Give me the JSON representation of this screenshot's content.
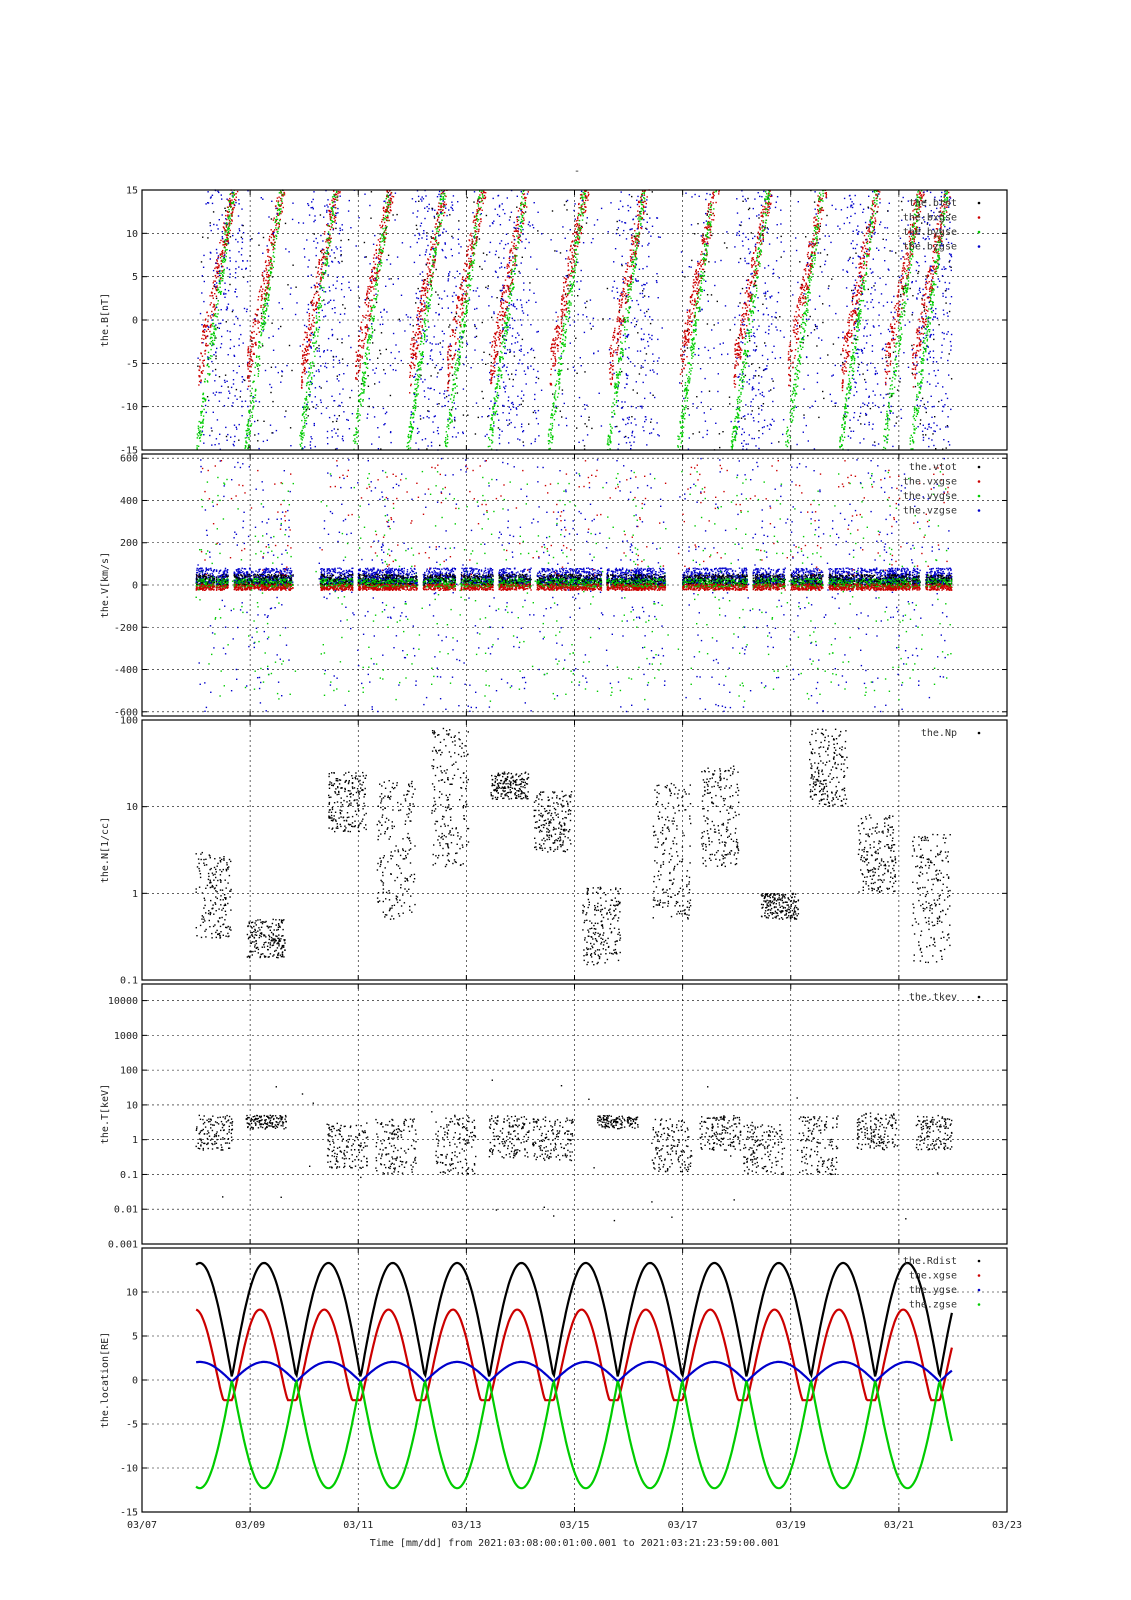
{
  "figure": {
    "top_mark": "-",
    "xlabel": "Time [mm/dd]  from 2021:03:08:00:01:00.001  to  2021:03:21:23:59:00.001",
    "x_range_days": [
      7,
      23
    ],
    "x_tick_days": [
      7,
      9,
      11,
      13,
      15,
      17,
      19,
      21,
      23
    ],
    "x_tick_labels": [
      "03/07",
      "03/09",
      "03/11",
      "03/13",
      "03/15",
      "03/17",
      "03/19",
      "03/21",
      "03/23"
    ]
  },
  "colors": {
    "black": "#000000",
    "red": "#cc0000",
    "green": "#00cc00",
    "blue": "#0000cc",
    "grid": "#000000"
  },
  "chart_data": [
    {
      "type": "scatter",
      "id": "B",
      "ylabel": "the.B[nT]",
      "ylim": [
        -15,
        15
      ],
      "yticks": [
        15,
        10,
        5,
        0,
        -5,
        -10,
        -15
      ],
      "ytick_labels": [
        "15",
        "10",
        "5",
        "0",
        "-5",
        "-10",
        "-15"
      ],
      "grid": true,
      "legend_position": "top-right",
      "series": [
        {
          "name": "the.btot",
          "color": "black"
        },
        {
          "name": "the.bxgse",
          "color": "red"
        },
        {
          "name": "the.bygse",
          "color": "green"
        },
        {
          "name": "the.bzgse",
          "color": "blue"
        }
      ]
    },
    {
      "type": "scatter",
      "id": "V",
      "ylabel": "the.V[km/s]",
      "ylim": [
        -620,
        620
      ],
      "yticks": [
        600,
        400,
        200,
        0,
        -200,
        -400,
        -600
      ],
      "ytick_labels": [
        "600",
        "400",
        "200",
        "0",
        "-200",
        "-400",
        "-600"
      ],
      "grid": true,
      "legend_position": "top-right",
      "series": [
        {
          "name": "the.vtot",
          "color": "black"
        },
        {
          "name": "the.vxgse",
          "color": "red"
        },
        {
          "name": "the.vygse",
          "color": "green"
        },
        {
          "name": "the.vzgse",
          "color": "blue"
        }
      ]
    },
    {
      "type": "scatter",
      "id": "N",
      "ylabel": "the.N[1/cc]",
      "yscale": "log",
      "ylim": [
        0.1,
        100
      ],
      "yticks": [
        100,
        10,
        1,
        0.1
      ],
      "ytick_labels": [
        "100",
        "10",
        "1",
        "0.1"
      ],
      "grid": true,
      "legend_position": "top-right",
      "series": [
        {
          "name": "the.Np",
          "color": "black"
        }
      ]
    },
    {
      "type": "scatter",
      "id": "T",
      "ylabel": "the.T[keV]",
      "yscale": "log",
      "ylim": [
        0.001,
        30000
      ],
      "yticks": [
        10000,
        1000,
        100,
        10,
        1,
        0.1,
        0.01,
        0.001
      ],
      "ytick_labels": [
        "10000",
        "1000",
        "100",
        "10",
        "1",
        "0.1",
        "0.01",
        "0.001"
      ],
      "grid": true,
      "legend_position": "top-right",
      "series": [
        {
          "name": "the.tkev",
          "color": "black"
        }
      ]
    },
    {
      "type": "line",
      "id": "location",
      "ylabel": "the.location[RE]",
      "ylim": [
        -15,
        15
      ],
      "yticks": [
        10,
        5,
        0,
        -5,
        -10,
        -15
      ],
      "ytick_labels": [
        "10",
        "5",
        "0",
        "-5",
        "-10",
        "-15"
      ],
      "grid": true,
      "legend_position": "top-right",
      "orbit_period_days": 1.19,
      "series": [
        {
          "name": "the.Rdist",
          "color": "black",
          "min": 0.3,
          "max": 13.3
        },
        {
          "name": "the.xgse",
          "color": "red",
          "min": -2.3,
          "max": 8.0
        },
        {
          "name": "the.ygse",
          "color": "blue",
          "min": -0.2,
          "max": 2.1
        },
        {
          "name": "the.zgse",
          "color": "green",
          "min": -12.3,
          "max": 0.0
        }
      ]
    }
  ]
}
